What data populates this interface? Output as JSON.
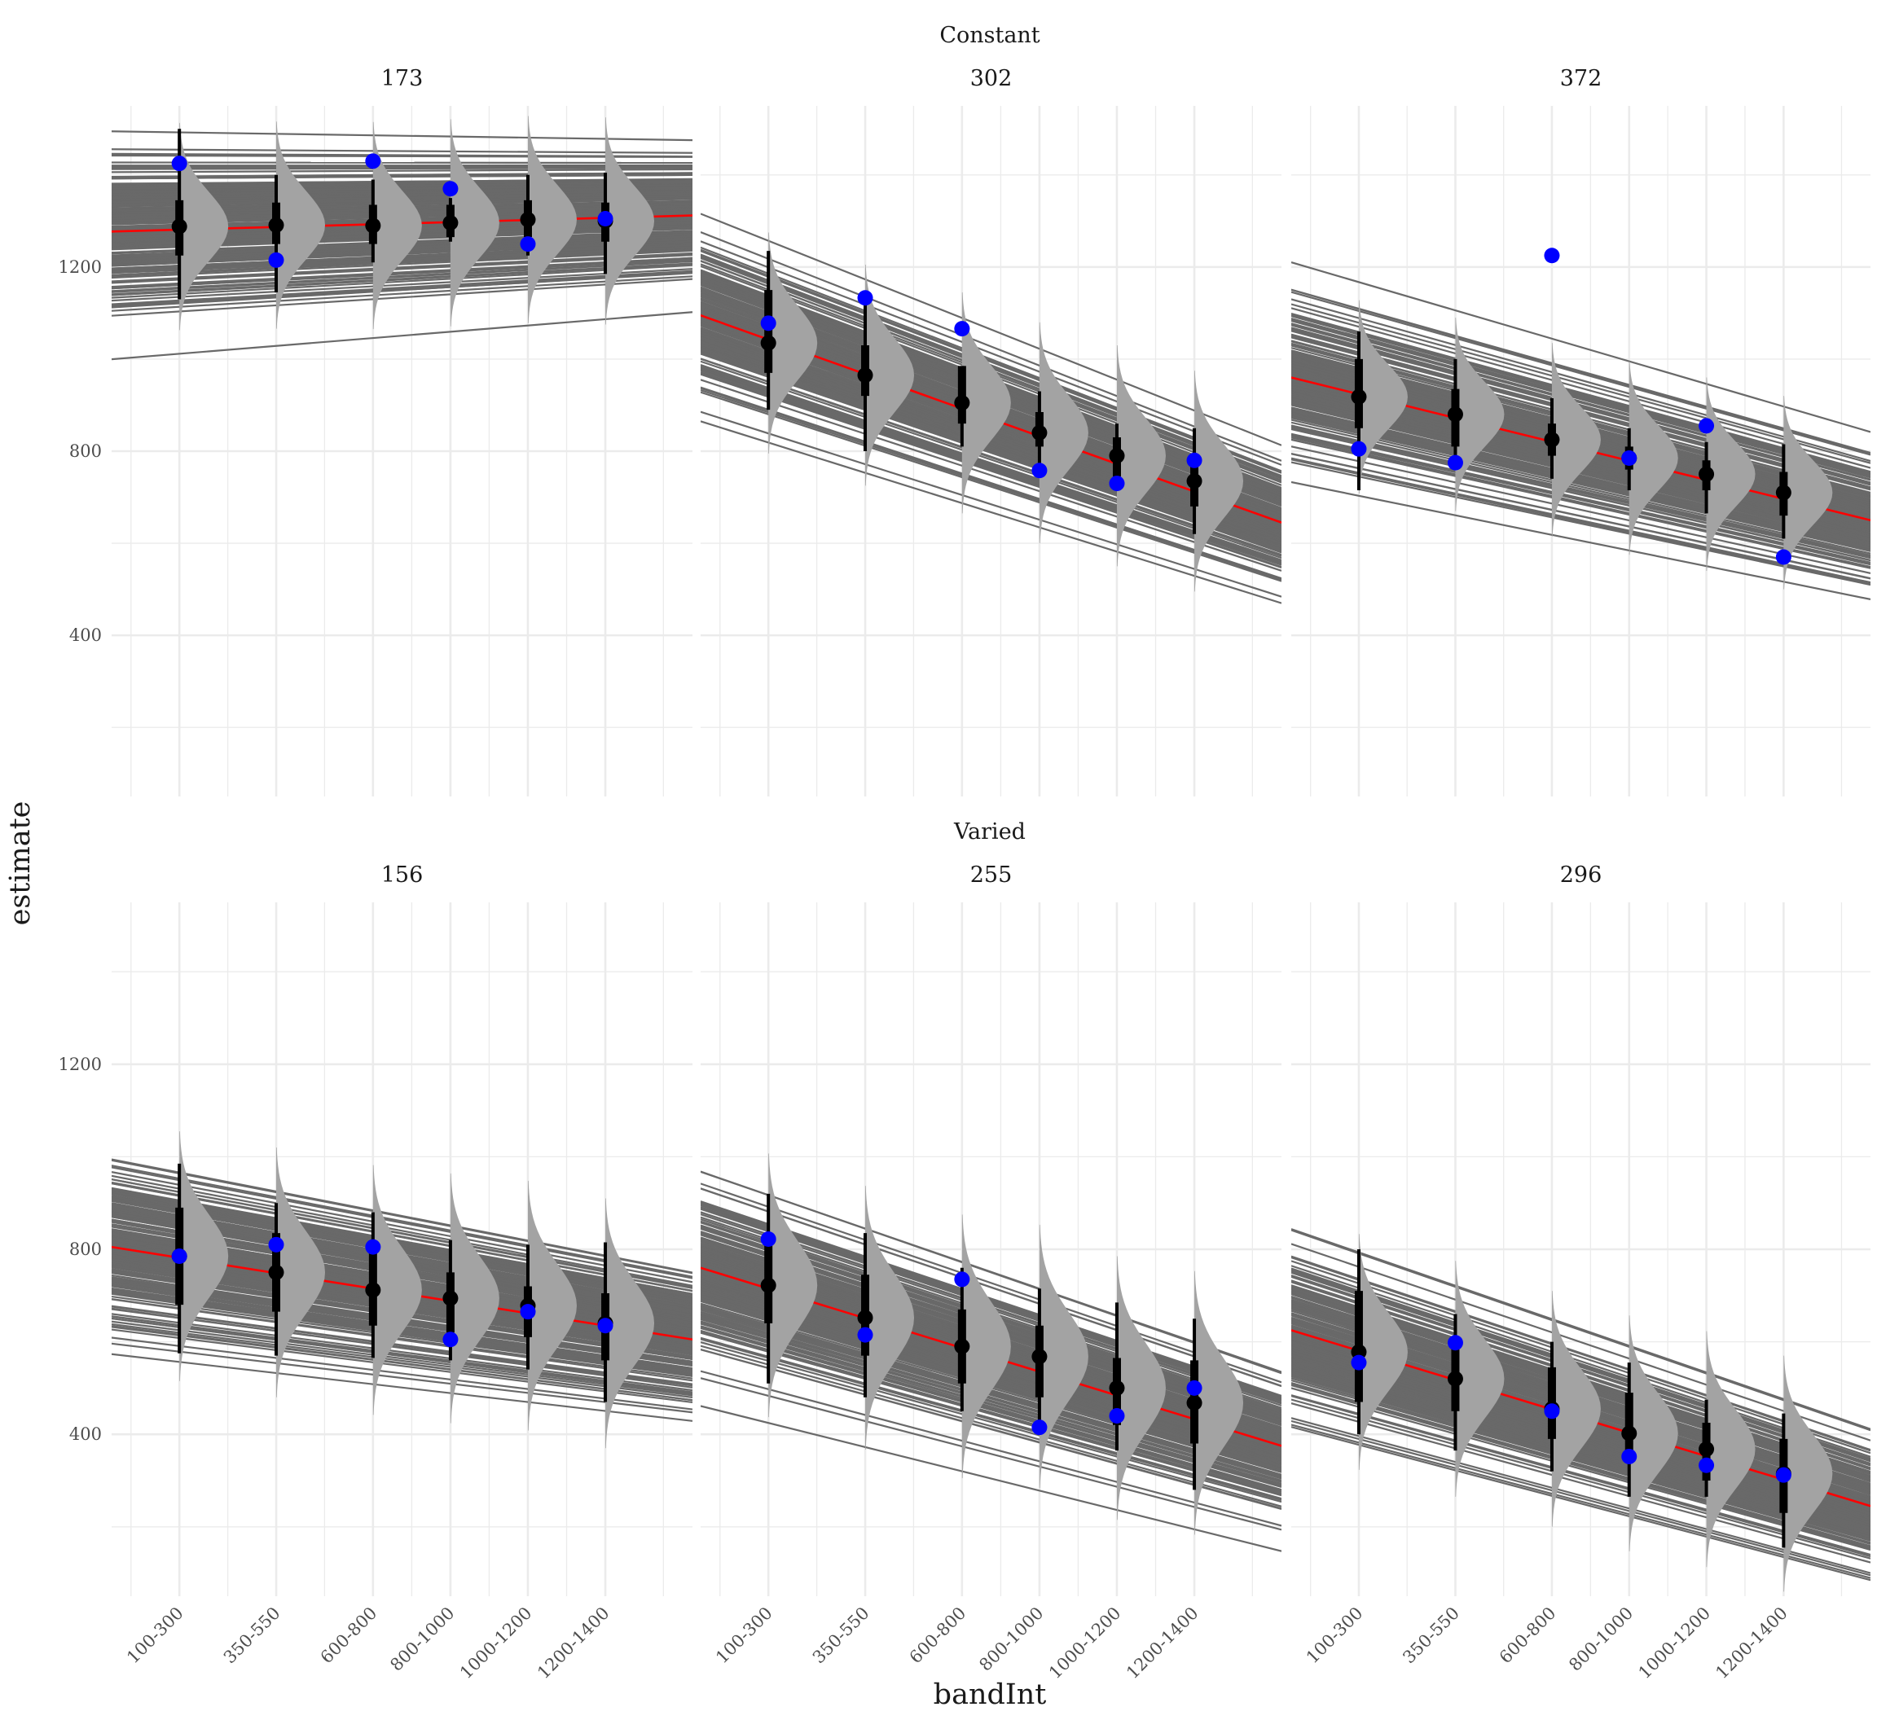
{
  "chart_data": {
    "type": "line",
    "description_free": true,
    "xlabel": "bandInt",
    "ylabel": "estimate",
    "categories": [
      "100-300",
      "350-550",
      "600-800",
      "800-1000",
      "1000-1200",
      "1200-1400"
    ],
    "x_positions": [
      200,
      450,
      700,
      900,
      1100,
      1300
    ],
    "xlim": [
      25,
      1525
    ],
    "ylim": [
      50,
      1550
    ],
    "yticks": [
      400,
      800,
      1200
    ],
    "rows": [
      {
        "label": "Constant",
        "panels": [
          {
            "title": "173",
            "fit": [
              1277,
              1312
            ],
            "spread": 0.0018,
            "centre": 800,
            "medians": [
              1288,
              1291,
              1290,
              1296,
              1303,
              1300
            ],
            "inner": [
              [
                1225,
                1345
              ],
              [
                1250,
                1340
              ],
              [
                1250,
                1335
              ],
              [
                1265,
                1335
              ],
              [
                1265,
                1345
              ],
              [
                1255,
                1340
              ]
            ],
            "outer": [
              [
                1130,
                1500
              ],
              [
                1145,
                1400
              ],
              [
                1210,
                1390
              ],
              [
                1255,
                1350
              ],
              [
                1225,
                1400
              ],
              [
                1185,
                1405
              ]
            ],
            "observed": [
              1425,
              1215,
              1430,
              1370,
              1250,
              1305
            ],
            "dist_sd": 75
          },
          {
            "title": "302",
            "fit": [
              1095,
              645
            ],
            "spread": 0.0022,
            "centre": 700,
            "medians": [
              1035,
              965,
              905,
              840,
              790,
              735
            ],
            "inner": [
              [
                970,
                1150
              ],
              [
                920,
                1030
              ],
              [
                860,
                985
              ],
              [
                810,
                885
              ],
              [
                745,
                830
              ],
              [
                680,
                790
              ]
            ],
            "outer": [
              [
                890,
                1235
              ],
              [
                800,
                1120
              ],
              [
                810,
                985
              ],
              [
                770,
                930
              ],
              [
                735,
                860
              ],
              [
                620,
                850
              ]
            ],
            "observed": [
              1078,
              1133,
              1066,
              758,
              730,
              780
            ],
            "dist_sd": 80
          },
          {
            "title": "372",
            "fit": [
              960,
              650
            ],
            "spread": 0.002,
            "centre": 750,
            "medians": [
              918,
              880,
              825,
              785,
              750,
              710
            ],
            "inner": [
              [
                850,
                1000
              ],
              [
                810,
                935
              ],
              [
                790,
                860
              ],
              [
                760,
                810
              ],
              [
                715,
                780
              ],
              [
                660,
                755
              ]
            ],
            "outer": [
              [
                715,
                1060
              ],
              [
                790,
                1000
              ],
              [
                740,
                915
              ],
              [
                715,
                850
              ],
              [
                665,
                820
              ],
              [
                610,
                815
              ]
            ],
            "observed": [
              805,
              775,
              1225,
              785,
              855,
              570
            ],
            "dist_sd": 70
          }
        ]
      },
      {
        "label": "Varied",
        "panels": [
          {
            "title": "156",
            "fit": [
              805,
              605
            ],
            "spread": 0.0022,
            "centre": 800,
            "medians": [
              785,
              750,
              712,
              694,
              678,
              640
            ],
            "inner": [
              [
                680,
                890
              ],
              [
                665,
                835
              ],
              [
                635,
                800
              ],
              [
                620,
                750
              ],
              [
                610,
                720
              ],
              [
                560,
                705
              ]
            ],
            "outer": [
              [
                575,
                985
              ],
              [
                570,
                900
              ],
              [
                565,
                880
              ],
              [
                560,
                820
              ],
              [
                540,
                810
              ],
              [
                470,
                815
              ]
            ],
            "observed": [
              785,
              810,
              805,
              605,
              665,
              635
            ],
            "dist_sd": 90
          },
          {
            "title": "255",
            "fit": [
              760,
              375
            ],
            "spread": 0.002,
            "centre": 850,
            "medians": [
              722,
              652,
              590,
              568,
              500,
              468
            ],
            "inner": [
              [
                640,
                820
              ],
              [
                570,
                745
              ],
              [
                510,
                670
              ],
              [
                480,
                635
              ],
              [
                420,
                565
              ],
              [
                380,
                560
              ]
            ],
            "outer": [
              [
                510,
                920
              ],
              [
                480,
                835
              ],
              [
                450,
                760
              ],
              [
                420,
                715
              ],
              [
                365,
                685
              ],
              [
                280,
                650
              ]
            ],
            "observed": [
              822,
              615,
              735,
              415,
              440,
              500
            ],
            "dist_sd": 95
          },
          {
            "title": "296",
            "fit": [
              625,
              245
            ],
            "spread": 0.0022,
            "centre": 900,
            "medians": [
              578,
              520,
              455,
              402,
              368,
              315
            ],
            "inner": [
              [
                470,
                710
              ],
              [
                450,
                590
              ],
              [
                390,
                545
              ],
              [
                340,
                490
              ],
              [
                300,
                425
              ],
              [
                230,
                390
              ]
            ],
            "outer": [
              [
                400,
                800
              ],
              [
                365,
                660
              ],
              [
                320,
                600
              ],
              [
                265,
                555
              ],
              [
                265,
                475
              ],
              [
                155,
                445
              ]
            ],
            "observed": [
              555,
              598,
              450,
              352,
              333,
              312
            ],
            "dist_sd": 85
          }
        ]
      }
    ]
  }
}
